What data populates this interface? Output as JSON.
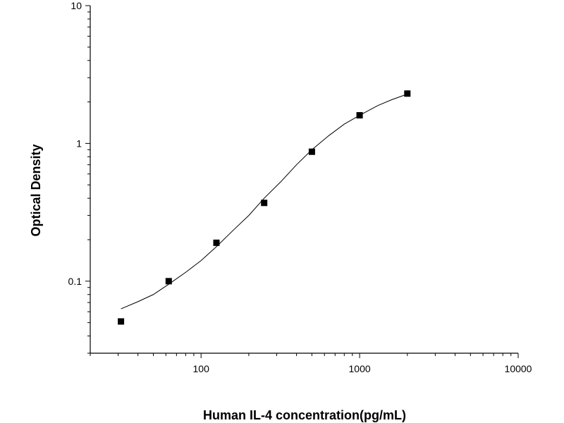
{
  "chart_data": {
    "type": "scatter",
    "title": "",
    "xlabel": "Human IL-4 concentration(pg/mL)",
    "ylabel": "Optical Density",
    "x_scale": "log",
    "y_scale": "log",
    "xlim": [
      20,
      10000
    ],
    "ylim": [
      0.03,
      10
    ],
    "x_ticks": [
      {
        "value": 100,
        "label": "100"
      },
      {
        "value": 1000,
        "label": "1000"
      },
      {
        "value": 10000,
        "label": "10000"
      }
    ],
    "y_ticks": [
      {
        "value": 0.1,
        "label": "0.1"
      },
      {
        "value": 1,
        "label": "1"
      },
      {
        "value": 10,
        "label": "10"
      }
    ],
    "grid": false,
    "legend": "none",
    "series": [
      {
        "x": [
          31.25,
          62.5,
          125,
          250,
          500,
          1000,
          2000
        ],
        "y": [
          0.051,
          0.1,
          0.19,
          0.37,
          0.87,
          1.6,
          2.3
        ]
      }
    ],
    "fit_curve": {
      "x": [
        31.25,
        40,
        50,
        62.5,
        80,
        100,
        125,
        160,
        200,
        250,
        320,
        400,
        500,
        640,
        800,
        1000,
        1300,
        1600,
        2000
      ],
      "y": [
        0.063,
        0.071,
        0.08,
        0.095,
        0.116,
        0.141,
        0.178,
        0.235,
        0.3,
        0.4,
        0.53,
        0.7,
        0.9,
        1.14,
        1.38,
        1.6,
        1.88,
        2.08,
        2.28
      ]
    },
    "colors": {
      "marker": "#000000",
      "curve": "#000000",
      "axis": "#000000"
    }
  }
}
